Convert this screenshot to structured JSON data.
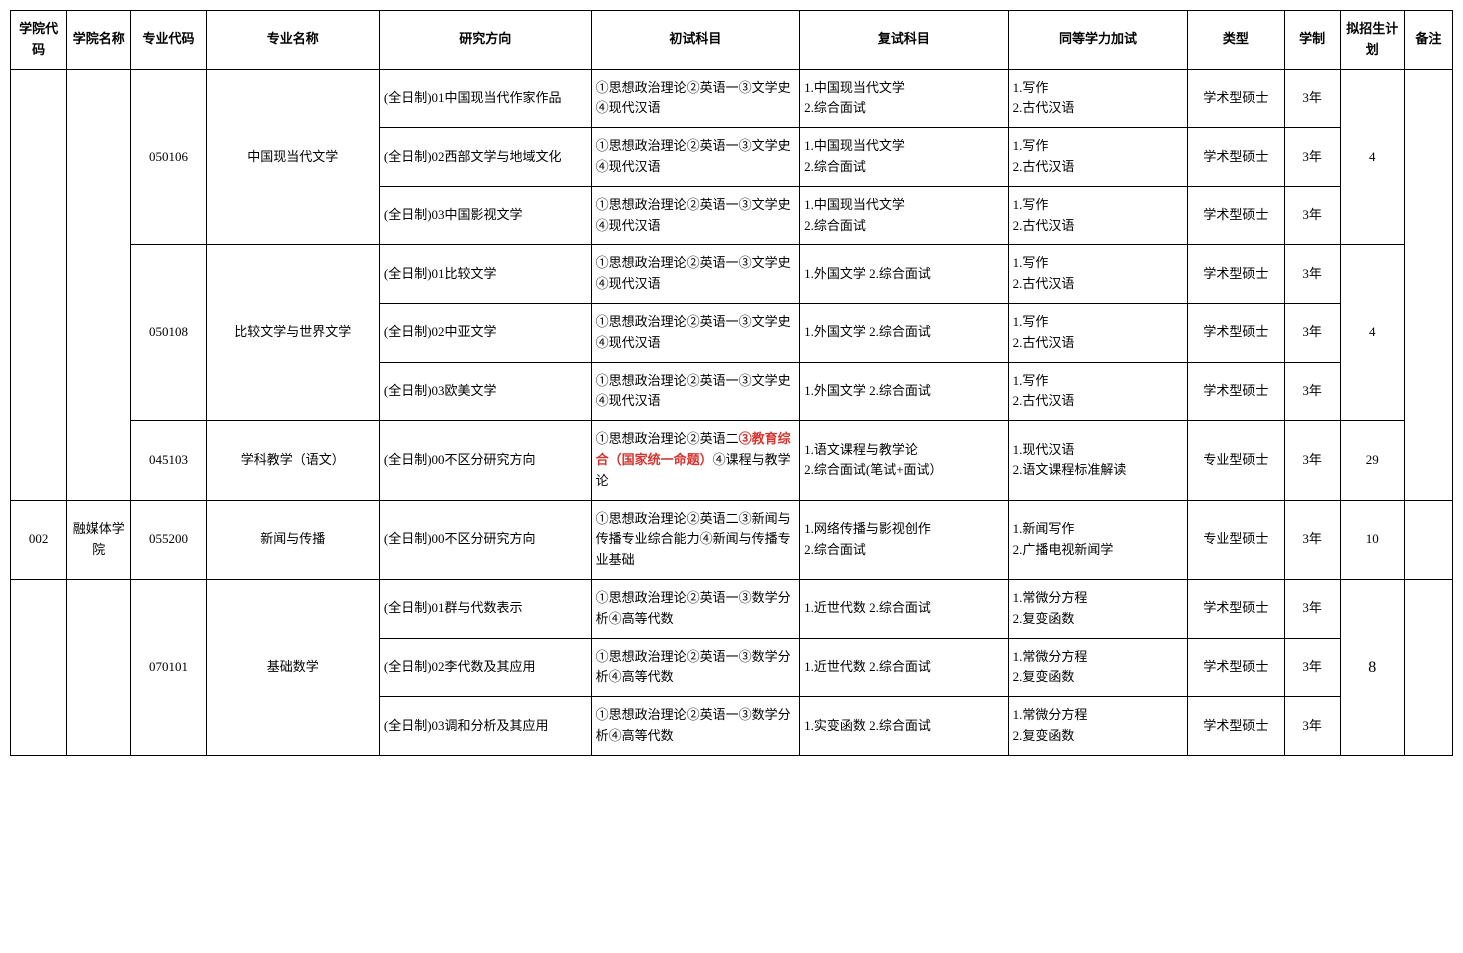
{
  "headers": {
    "college_code": "学院代码",
    "college_name": "学院名称",
    "major_code": "专业代码",
    "major_name": "专业名称",
    "research_dir": "研究方向",
    "prelim_exam": "初试科目",
    "reexam": "复试科目",
    "equiv_test": "同等学力加试",
    "type": "类型",
    "duration": "学制",
    "plan": "拟招生计划",
    "remark": "备注"
  },
  "rows": [
    {
      "major_code": "050106",
      "major_name": "中国现当代文学",
      "dir": "(全日制)01中国现当代作家作品",
      "prelim": "①思想政治理论②英语一③文学史④现代汉语",
      "reexam": "1.中国现当代文学\n2.综合面试",
      "equiv": "1.写作\n2.古代汉语",
      "type": "学术型硕士",
      "dur": "3年",
      "plan": "4"
    },
    {
      "dir": "(全日制)02西部文学与地域文化",
      "prelim": "①思想政治理论②英语一③文学史④现代汉语",
      "reexam": "1.中国现当代文学\n2.综合面试",
      "equiv": "1.写作\n2.古代汉语",
      "type": "学术型硕士",
      "dur": "3年"
    },
    {
      "dir": "(全日制)03中国影视文学",
      "prelim": "①思想政治理论②英语一③文学史④现代汉语",
      "reexam": "1.中国现当代文学\n2.综合面试",
      "equiv": "1.写作\n2.古代汉语",
      "type": "学术型硕士",
      "dur": "3年"
    },
    {
      "major_code": "050108",
      "major_name": "比较文学与世界文学",
      "dir": "(全日制)01比较文学",
      "prelim": "①思想政治理论②英语一③文学史④现代汉语",
      "reexam": "1.外国文学  2.综合面试",
      "equiv": "1.写作\n2.古代汉语",
      "type": "学术型硕士",
      "dur": "3年",
      "plan": "4"
    },
    {
      "dir": "(全日制)02中亚文学",
      "prelim": "①思想政治理论②英语一③文学史④现代汉语",
      "reexam": "1.外国文学  2.综合面试",
      "equiv": "1.写作\n2.古代汉语",
      "type": "学术型硕士",
      "dur": "3年"
    },
    {
      "dir": "(全日制)03欧美文学",
      "prelim": "①思想政治理论②英语一③文学史④现代汉语",
      "reexam": "1.外国文学  2.综合面试",
      "equiv": "1.写作\n2.古代汉语",
      "type": "学术型硕士",
      "dur": "3年"
    },
    {
      "major_code": "045103",
      "major_name": "学科教学（语文）",
      "dir": "(全日制)00不区分研究方向",
      "prelim_parts": {
        "p1": "①思想政治理论②英语二",
        "hl": "③教育综合（国家统一命题）",
        "p2": "④课程与教学论"
      },
      "reexam": "1.语文课程与教学论\n2.综合面试(笔试+面试）",
      "equiv": "1.现代汉语\n2.语文课程标准解读",
      "type": "专业型硕士",
      "dur": "3年",
      "plan": "29"
    },
    {
      "college_code": "002",
      "college_name": "融媒体学院",
      "major_code": "055200",
      "major_name": "新闻与传播",
      "dir": "(全日制)00不区分研究方向",
      "prelim": "①思想政治理论②英语二③新闻与传播专业综合能力④新闻与传播专业基础",
      "reexam": "1.网络传播与影视创作\n2.综合面试",
      "equiv": "1.新闻写作\n2.广播电视新闻学",
      "type": "专业型硕士",
      "dur": "3年",
      "plan": "10"
    },
    {
      "major_code": "070101",
      "major_name": "基础数学",
      "dir": "(全日制)01群与代数表示",
      "prelim": "①思想政治理论②英语一③数学分析④高等代数",
      "reexam": "1.近世代数  2.综合面试",
      "equiv": "1.常微分方程\n2.复变函数",
      "type": "学术型硕士",
      "dur": "3年",
      "plan": "8"
    },
    {
      "dir": "(全日制)02李代数及其应用",
      "prelim": "①思想政治理论②英语一③数学分析④高等代数",
      "reexam": "1.近世代数  2.综合面试",
      "equiv": "1.常微分方程\n2.复变函数",
      "type": "学术型硕士",
      "dur": "3年"
    },
    {
      "dir": "(全日制)03调和分析及其应用",
      "prelim": "①思想政治理论②英语一③数学分析④高等代数",
      "reexam": "1.实变函数  2.综合面试",
      "equiv": "1.常微分方程\n2.复变函数",
      "type": "学术型硕士",
      "dur": "3年"
    }
  ],
  "styling": {
    "border_color": "#000000",
    "background_color": "#ffffff",
    "text_color": "#000000",
    "highlight_color": "#d43530",
    "font_family": "SimSun",
    "font_size": 13,
    "plan_font_size_large": 16
  }
}
